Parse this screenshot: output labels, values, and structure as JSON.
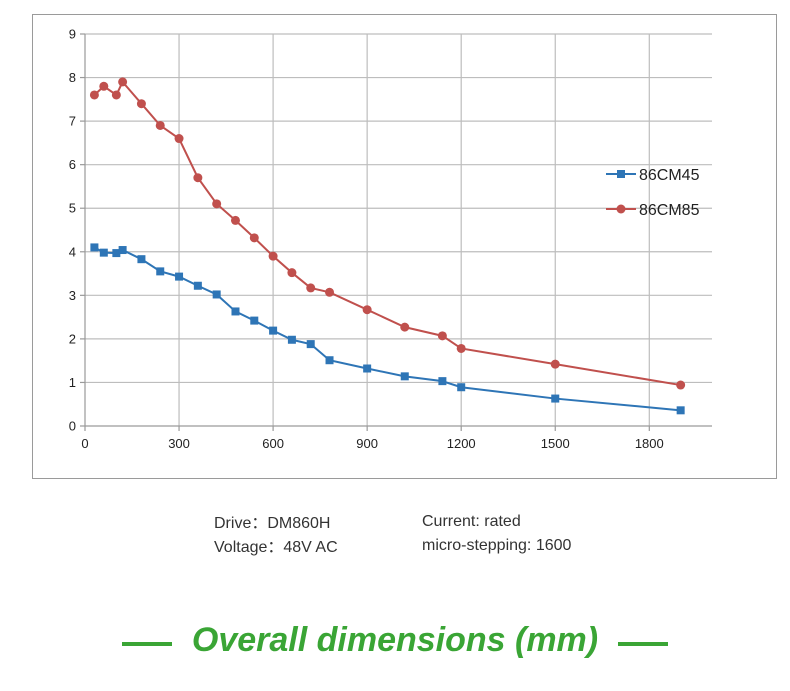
{
  "chart_data": {
    "type": "line",
    "title": "",
    "xlabel": "",
    "ylabel": "",
    "xlim": [
      0,
      2000
    ],
    "ylim": [
      0,
      9
    ],
    "xticks": [
      0,
      300,
      600,
      900,
      1200,
      1500,
      1800
    ],
    "yticks": [
      0,
      1,
      2,
      3,
      4,
      5,
      6,
      7,
      8,
      9
    ],
    "grid": true,
    "legend_position": "right",
    "series": [
      {
        "name": "86CM45",
        "color": "#2e75b6",
        "marker": "square",
        "x": [
          30,
          60,
          100,
          120,
          180,
          240,
          300,
          360,
          420,
          480,
          540,
          600,
          660,
          720,
          780,
          900,
          1020,
          1140,
          1200,
          1500,
          1900
        ],
        "y": [
          4.1,
          3.98,
          3.97,
          4.04,
          3.83,
          3.55,
          3.43,
          3.22,
          3.02,
          2.63,
          2.42,
          2.19,
          1.98,
          1.88,
          1.51,
          1.32,
          1.14,
          1.03,
          0.89,
          0.63,
          0.36
        ]
      },
      {
        "name": "86CM85",
        "color": "#c0504d",
        "marker": "circle",
        "x": [
          30,
          60,
          100,
          120,
          180,
          240,
          300,
          360,
          420,
          480,
          540,
          600,
          660,
          720,
          780,
          900,
          1020,
          1140,
          1200,
          1500,
          1900
        ],
        "y": [
          7.6,
          7.8,
          7.6,
          7.9,
          7.4,
          6.9,
          6.6,
          5.7,
          5.1,
          4.72,
          4.32,
          3.9,
          3.52,
          3.17,
          3.07,
          2.67,
          2.27,
          2.07,
          1.78,
          1.42,
          0.94
        ]
      }
    ]
  },
  "info": {
    "drive": "Drive：DM860H",
    "voltage": "Voltage：48V AC",
    "current": "Current: rated",
    "microstepping": "micro-stepping: 1600"
  },
  "footer": {
    "title": "Overall dimensions (mm)",
    "accent_color": "#3aa535"
  }
}
